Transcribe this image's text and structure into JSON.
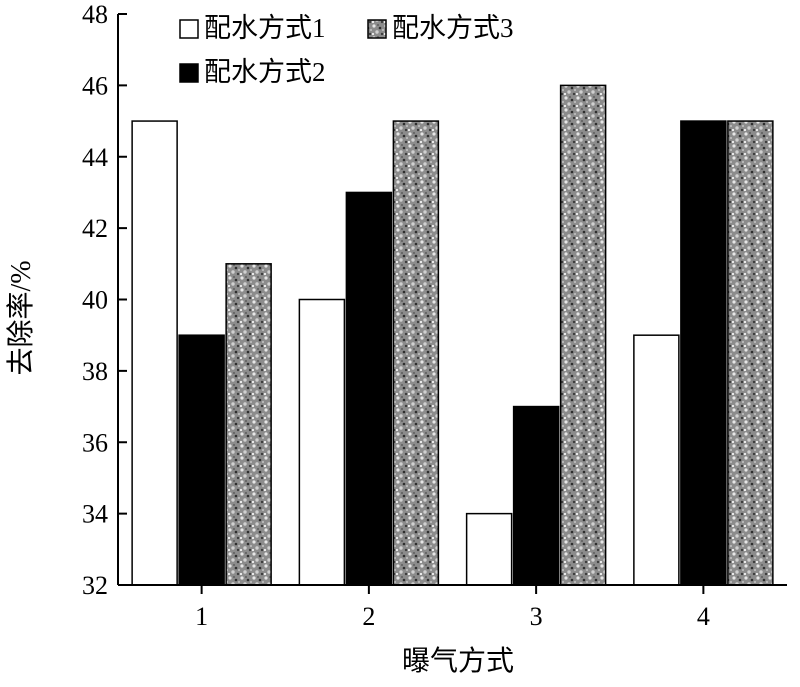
{
  "chart_data": {
    "type": "bar",
    "xlabel": "曝气方式",
    "ylabel": "去除率/%",
    "categories": [
      "1",
      "2",
      "3",
      "4"
    ],
    "ylim": [
      32,
      48
    ],
    "yticks": [
      "32",
      "34",
      "36",
      "38",
      "40",
      "42",
      "44",
      "46",
      "48"
    ],
    "grid": false,
    "legend_position": "top-left",
    "series": [
      {
        "name": "配水方式1",
        "values": [
          45,
          40,
          34,
          39
        ],
        "fill": "#ffffff",
        "pattern": "solid"
      },
      {
        "name": "配水方式2",
        "values": [
          39,
          43,
          37,
          45
        ],
        "fill": "#000000",
        "pattern": "solid"
      },
      {
        "name": "配水方式3",
        "values": [
          41,
          45,
          46,
          45
        ],
        "fill": "#8a8a8a",
        "pattern": "speckled-gray"
      }
    ]
  }
}
